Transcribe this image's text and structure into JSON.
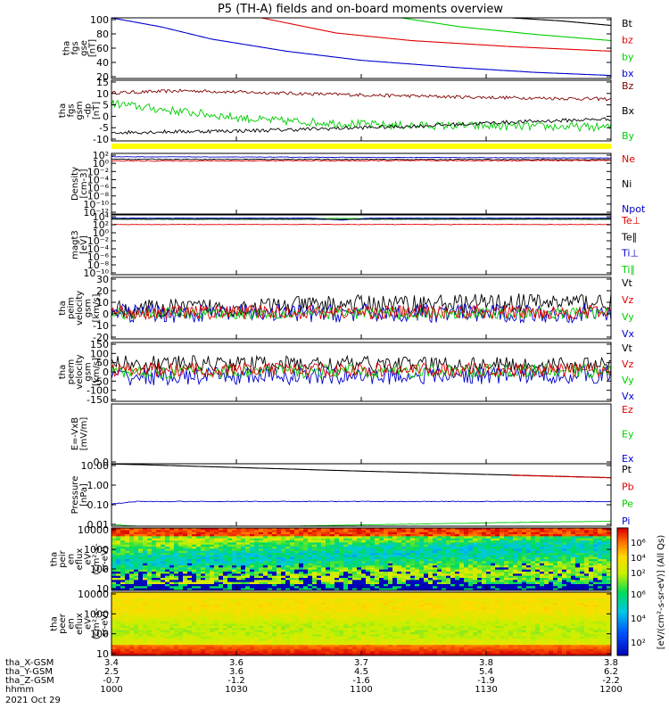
{
  "title": "P5 (TH-A) fields and on-board moments overview",
  "footer": {
    "rows": [
      {
        "label": "tha_X-GSM",
        "values": [
          "3.4",
          "3.6",
          "3.7",
          "3.8",
          "3.8"
        ]
      },
      {
        "label": "tha_Y-GSM",
        "values": [
          "2.5",
          "3.6",
          "4.5",
          "5.4",
          "6.2"
        ]
      },
      {
        "label": "tha_Z-GSM",
        "values": [
          "-0.7",
          "-1.2",
          "-1.6",
          "-1.9",
          "-2.2"
        ]
      },
      {
        "label": "hhmm",
        "values": [
          "1000",
          "1030",
          "1100",
          "1130",
          "1200"
        ]
      }
    ],
    "date": "2021 Oct 29"
  },
  "colorbar": {
    "label": "[eV/(cm²-s-sr-eV)] (All Qs)",
    "top_ticks": [
      "10⁶",
      "10⁴",
      "10²"
    ],
    "bottom_ticks": [
      "10⁶",
      "10⁴",
      "10²"
    ]
  },
  "chart_data": [
    {
      "type": "line",
      "id": "fgs-gse",
      "ylabel": [
        "tha",
        "fgs",
        "gse",
        "[nT]"
      ],
      "yticks": [
        "100",
        "80",
        "60",
        "40",
        "20"
      ],
      "ylim": [
        20,
        100
      ],
      "legend": [
        {
          "text": "Bt",
          "color": "#000000"
        },
        {
          "text": "bz",
          "color": "#e00000"
        },
        {
          "text": "by",
          "color": "#00cc00"
        },
        {
          "text": "bx",
          "color": "#0000cc"
        }
      ],
      "series": [
        {
          "name": "Bt",
          "color": "#000000",
          "x": [
            0.8,
            0.9,
            1.0
          ],
          "y": [
            100,
            96,
            90
          ]
        },
        {
          "name": "bz",
          "color": "#e00000",
          "x": [
            0.3,
            0.45,
            0.6,
            0.8,
            1.0
          ],
          "y": [
            100,
            80,
            70,
            62,
            56
          ]
        },
        {
          "name": "by",
          "color": "#00cc00",
          "x": [
            0.58,
            0.7,
            0.85,
            1.0
          ],
          "y": [
            100,
            88,
            78,
            70
          ]
        },
        {
          "name": "bx",
          "color": "#0000cc",
          "x": [
            0.0,
            0.1,
            0.2,
            0.35,
            0.5,
            0.7,
            0.85,
            1.0
          ],
          "y": [
            100,
            88,
            72,
            56,
            44,
            34,
            28,
            24
          ]
        }
      ]
    },
    {
      "type": "line",
      "id": "fgs-gsm-dp",
      "ylabel": [
        "tha",
        "fgs",
        "gsm",
        "-dp",
        "[nT]"
      ],
      "yticks": [
        "15",
        "10",
        "5",
        "0",
        "-5",
        "-10"
      ],
      "ylim": [
        -13,
        16
      ],
      "legend": [
        {
          "text": "Bz",
          "color": "#800000"
        },
        {
          "text": "Bx",
          "color": "#000000"
        },
        {
          "text": "By",
          "color": "#00cc00"
        }
      ],
      "series": [
        {
          "name": "Bz",
          "color": "#800000",
          "x": [
            0.0,
            0.15,
            0.4,
            0.7,
            1.0
          ],
          "y": [
            10,
            11,
            9.5,
            8,
            7
          ],
          "noise": 0.8
        },
        {
          "name": "By",
          "color": "#00cc00",
          "x": [
            0.0,
            0.1,
            0.3,
            0.55,
            0.8,
            1.0
          ],
          "y": [
            5,
            2,
            -3,
            -5.5,
            -6,
            -6.5
          ],
          "noise": 2.0
        },
        {
          "name": "Bx",
          "color": "#000000",
          "x": [
            0.0,
            0.3,
            0.6,
            0.8,
            1.0
          ],
          "y": [
            -9,
            -8,
            -6,
            -4,
            -2.5
          ],
          "noise": 0.9
        }
      ]
    },
    {
      "type": "line",
      "id": "density",
      "ylabel": [
        "Density",
        "[cm-3]"
      ],
      "yticks": [
        "10²",
        "10⁰",
        "10⁻²",
        "10⁻⁴",
        "10⁻⁶",
        "10⁻⁸",
        "10⁻¹⁰",
        "10⁻¹²"
      ],
      "ylim": [
        -12.5,
        2
      ],
      "log": true,
      "legend": [
        {
          "text": "Ne",
          "color": "#e00000"
        },
        {
          "text": "Ni",
          "color": "#000000"
        },
        {
          "text": "Npot",
          "color": "#0000cc"
        }
      ],
      "series": [
        {
          "name": "Npot",
          "color": "#0000cc",
          "x": [
            0.0,
            1.0
          ],
          "y": [
            1.2,
            0.9
          ],
          "noise": 0.05
        },
        {
          "name": "Ni",
          "color": "#000000",
          "x": [
            0.0,
            1.0
          ],
          "y": [
            0.6,
            0.5
          ],
          "noise": 0.1
        },
        {
          "name": "Ne",
          "color": "#e00000",
          "x": [
            0.0,
            1.0
          ],
          "y": [
            0.2,
            0.3
          ],
          "noise": 0.12
        }
      ]
    },
    {
      "type": "line",
      "id": "temperature",
      "ylabel": [
        "magt3",
        "[eV]"
      ],
      "yticks": [
        "10⁴",
        "10²",
        "10⁰",
        "10⁻²",
        "10⁻⁴",
        "10⁻⁶",
        "10⁻⁸",
        "10⁻¹⁰"
      ],
      "ylim": [
        -10.5,
        4.5
      ],
      "log": true,
      "legend": [
        {
          "text": "Te⊥",
          "color": "#e00000"
        },
        {
          "text": "Te∥",
          "color": "#000000"
        },
        {
          "text": "Ti⊥",
          "color": "#0000cc"
        },
        {
          "text": "Ti∥",
          "color": "#00cc00"
        }
      ],
      "series": [
        {
          "name": "Ti∥",
          "color": "#00cc00",
          "x": [
            0.0,
            1.0
          ],
          "y": [
            3.6,
            3.6
          ],
          "noise": 0.06
        },
        {
          "name": "Ti⊥",
          "color": "#0000cc",
          "x": [
            0.0,
            0.4,
            0.46,
            0.52,
            1.0
          ],
          "y": [
            3.7,
            3.7,
            3.2,
            3.7,
            3.7
          ],
          "noise": 0.05
        },
        {
          "name": "Te∥",
          "color": "#000000",
          "x": [
            0.0,
            1.0
          ],
          "y": [
            3.4,
            3.4
          ],
          "noise": 0.04
        },
        {
          "name": "Te⊥",
          "color": "#e00000",
          "x": [
            0.0,
            1.0
          ],
          "y": [
            2.1,
            2.1
          ],
          "noise": 0.06
        }
      ]
    },
    {
      "type": "line",
      "id": "peim-velocity",
      "ylabel": [
        "tha",
        "peim",
        "velocity",
        "gsm",
        "[km/s]"
      ],
      "yticks": [
        "30",
        "20",
        "10",
        "0",
        "-10",
        "-20"
      ],
      "ylim": [
        -22,
        31
      ],
      "legend": [
        {
          "text": "Vt",
          "color": "#000000"
        },
        {
          "text": "Vz",
          "color": "#e00000"
        },
        {
          "text": "Vy",
          "color": "#00cc00"
        },
        {
          "text": "Vx",
          "color": "#0000cc"
        }
      ],
      "series": [
        {
          "name": "Vt",
          "color": "#000000",
          "x": [
            0.0,
            0.5,
            1.0
          ],
          "y": [
            3,
            8,
            10
          ],
          "noise": 8
        },
        {
          "name": "Vx",
          "color": "#0000cc",
          "x": [
            0.0,
            1.0
          ],
          "y": [
            0,
            0
          ],
          "noise": 8
        },
        {
          "name": "Vy",
          "color": "#00cc00",
          "x": [
            0.0,
            1.0
          ],
          "y": [
            0,
            0
          ],
          "noise": 5
        },
        {
          "name": "Vz",
          "color": "#e00000",
          "x": [
            0.0,
            1.0
          ],
          "y": [
            1,
            1
          ],
          "noise": 6
        }
      ]
    },
    {
      "type": "line",
      "id": "peem-velocity",
      "ylabel": [
        "tha",
        "peem",
        "velocity",
        "gsm",
        "[km/s]"
      ],
      "yticks": [
        "150",
        "100",
        "50",
        "0",
        "-50",
        "-100",
        "-150"
      ],
      "ylim": [
        -150,
        150
      ],
      "legend": [
        {
          "text": "Vt",
          "color": "#000000"
        },
        {
          "text": "Vz",
          "color": "#e00000"
        },
        {
          "text": "Vy",
          "color": "#00cc00"
        },
        {
          "text": "Vx",
          "color": "#0000cc"
        }
      ],
      "series": [
        {
          "name": "Vt",
          "color": "#000000",
          "x": [
            0.0,
            1.0
          ],
          "y": [
            45,
            35
          ],
          "noise": 40
        },
        {
          "name": "Vx",
          "color": "#0000cc",
          "x": [
            0.0,
            1.0
          ],
          "y": [
            -25,
            -15
          ],
          "noise": 45
        },
        {
          "name": "Vy",
          "color": "#00cc00",
          "x": [
            0.0,
            1.0
          ],
          "y": [
            0,
            5
          ],
          "noise": 35
        },
        {
          "name": "Vz",
          "color": "#e00000",
          "x": [
            0.0,
            1.0
          ],
          "y": [
            10,
            10
          ],
          "noise": 35
        }
      ]
    },
    {
      "type": "line",
      "id": "efield",
      "ylabel": [
        "E=-VxB",
        "[mV/m]"
      ],
      "yticks": [
        "0.0"
      ],
      "ylim": [
        0,
        1
      ],
      "legend": [
        {
          "text": "Ez",
          "color": "#e00000"
        },
        {
          "text": "Ey",
          "color": "#00cc00"
        },
        {
          "text": "Ex",
          "color": "#0000cc"
        }
      ],
      "series": []
    },
    {
      "type": "line",
      "id": "pressure",
      "ylabel": [
        "Pressure",
        "[nPa]"
      ],
      "yticks": [
        "10.00",
        "1.00",
        "0.10",
        "0.01"
      ],
      "ylim": [
        -2.3,
        1.5
      ],
      "log": true,
      "legend": [
        {
          "text": "Pt",
          "color": "#000000"
        },
        {
          "text": "Pb",
          "color": "#e00000"
        },
        {
          "text": "Pe",
          "color": "#00cc00"
        },
        {
          "text": "Pi",
          "color": "#0000cc"
        }
      ],
      "series": [
        {
          "name": "Pt",
          "color": "#000000",
          "x": [
            0.0,
            0.05,
            0.5,
            1.0
          ],
          "y": [
            1.48,
            1.45,
            1.05,
            0.65
          ]
        },
        {
          "name": "Pb",
          "color": "#e00000",
          "x": [
            0.8,
            1.0
          ],
          "y": [
            0.8,
            0.65
          ],
          "noise": 0.02
        },
        {
          "name": "Pi",
          "color": "#0000cc",
          "x": [
            0.0,
            0.05,
            1.0
          ],
          "y": [
            -0.95,
            -0.8,
            -0.8
          ],
          "noise": 0.02
        },
        {
          "name": "Pe",
          "color": "#00cc00",
          "x": [
            0.0,
            0.05,
            0.1,
            0.35,
            0.55,
            0.75,
            1.0
          ],
          "y": [
            -2.2,
            -2.3,
            -2.3,
            -2.3,
            -2.2,
            -2.1,
            -2.0
          ],
          "noise": 0.01
        }
      ]
    },
    {
      "type": "heatmap",
      "id": "peir-eflux",
      "ylabel": [
        "tha",
        "peir",
        "en",
        "eflux",
        "eV",
        "(cm²-s-",
        "sr-eV)"
      ],
      "yticks": [
        "10000",
        "1000",
        "100",
        "10"
      ],
      "ylim": [
        0.7,
        4.5
      ],
      "log": true
    },
    {
      "type": "heatmap",
      "id": "peer-eflux",
      "ylabel": [
        "tha",
        "peer",
        "en",
        "eflux",
        "eV",
        "(cm²-s-",
        "sr-eV)"
      ],
      "yticks": [
        "10000",
        "1000",
        "100",
        "10"
      ],
      "ylim": [
        0.7,
        4.4
      ],
      "log": true
    }
  ]
}
